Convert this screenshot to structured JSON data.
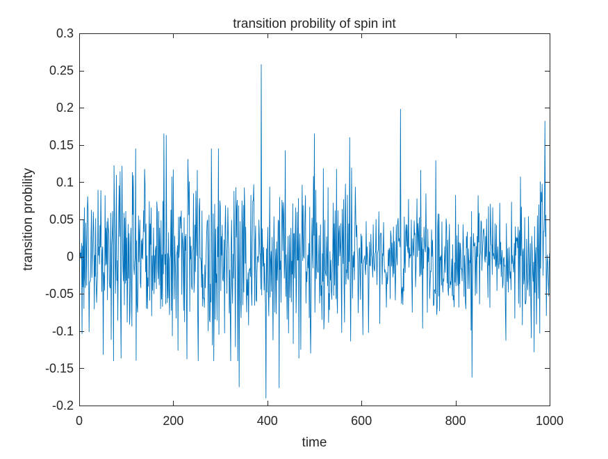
{
  "chart_data": {
    "type": "line",
    "title": "transition probility of spin int",
    "xlabel": "time",
    "ylabel": "transition probility",
    "xlim": [
      0,
      1000
    ],
    "ylim": [
      -0.2,
      0.3
    ],
    "xticks": [
      0,
      200,
      400,
      600,
      800,
      1000
    ],
    "yticks": [
      -0.2,
      -0.15,
      -0.1,
      -0.05,
      0,
      0.05,
      0.1,
      0.15,
      0.2,
      0.25,
      0.3
    ],
    "xtick_labels": [
      "0",
      "200",
      "400",
      "600",
      "800",
      "1000"
    ],
    "ytick_labels": [
      "-0.2",
      "-0.15",
      "-0.1",
      "-0.05",
      "0",
      "0.05",
      "0.1",
      "0.15",
      "0.2",
      "0.25",
      "0.3"
    ],
    "grid": false,
    "legend": "none",
    "series": [
      {
        "color": "#0072BD",
        "x_start": 1,
        "x_end": 1000,
        "n_points": 1000,
        "notable_values": [
          {
            "x": 387,
            "y": 0.258
          },
          {
            "x": 397,
            "y": -0.19
          },
          {
            "x": 683,
            "y": 0.198
          },
          {
            "x": 990,
            "y": 0.182
          },
          {
            "x": 180,
            "y": 0.165
          },
          {
            "x": 185,
            "y": 0.163
          },
          {
            "x": 340,
            "y": -0.175
          },
          {
            "x": 425,
            "y": -0.176
          },
          {
            "x": 835,
            "y": -0.162
          },
          {
            "x": 575,
            "y": 0.16
          },
          {
            "x": 500,
            "y": 0.165
          }
        ]
      }
    ]
  }
}
